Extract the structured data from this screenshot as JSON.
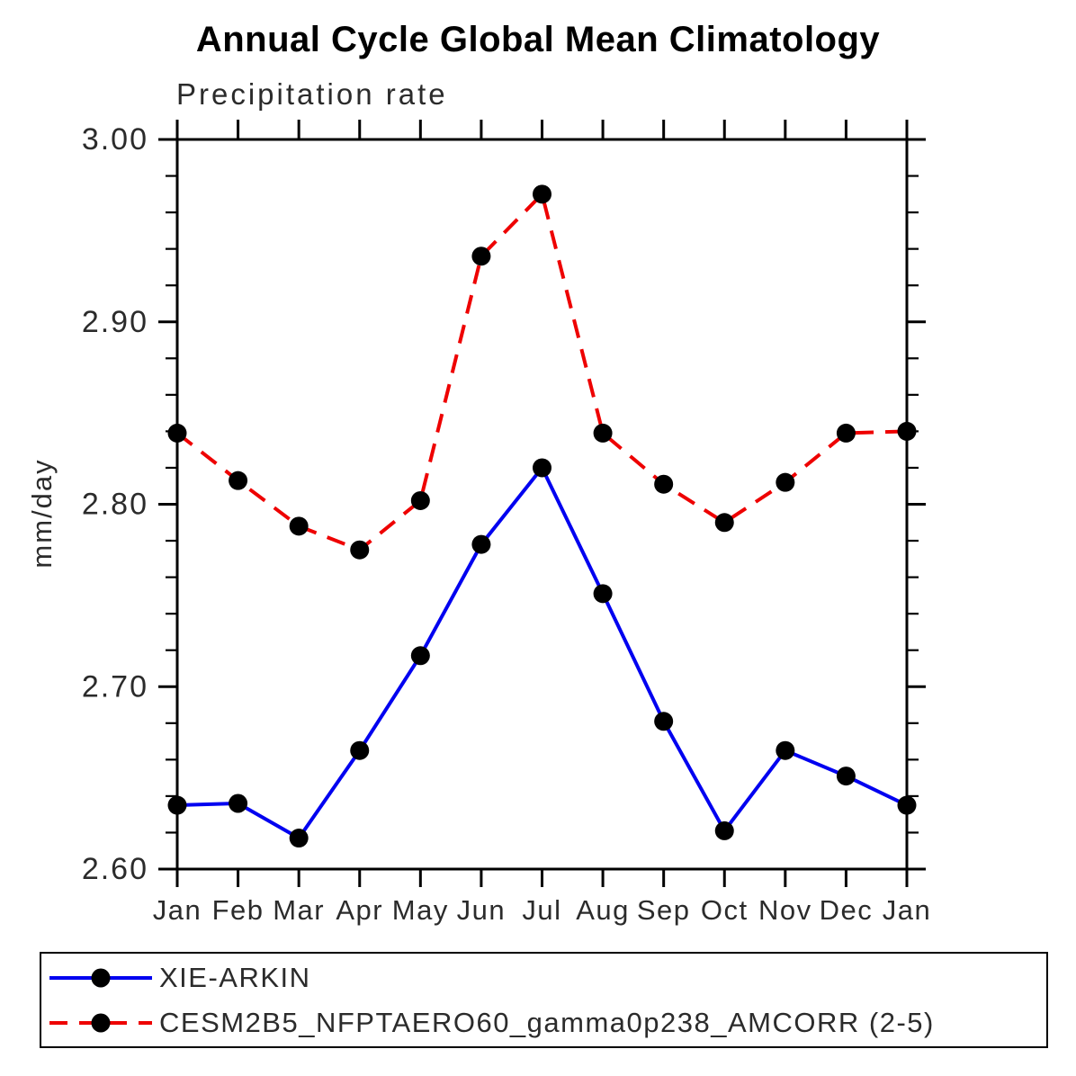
{
  "header": {
    "title": "Annual Cycle Global Mean Climatology",
    "subtitle": "Precipitation rate"
  },
  "chart_data": {
    "type": "line",
    "title": "Annual Cycle Global Mean Climatology",
    "subtitle": "Precipitation rate",
    "xlabel": "",
    "ylabel": "mm/day",
    "x_tick_labels": [
      "Jan",
      "Feb",
      "Mar",
      "Apr",
      "May",
      "Jun",
      "Jul",
      "Aug",
      "Sep",
      "Oct",
      "Nov",
      "Dec",
      "Jan"
    ],
    "y_tick_labels": [
      "2.60",
      "2.70",
      "2.80",
      "2.90",
      "3.00"
    ],
    "ylim": [
      2.6,
      3.0
    ],
    "y_major_step": 0.1,
    "y_minor_step": 0.02,
    "grid": false,
    "legend_position": "bottom",
    "frame_color": "#000000",
    "text_color": "#2b2b2b",
    "series": [
      {
        "name": "XIE-ARKIN",
        "color": "#0000f0",
        "line_style": "solid",
        "marker": "circle",
        "marker_color": "#000000",
        "values": [
          2.635,
          2.636,
          2.617,
          2.665,
          2.717,
          2.778,
          2.82,
          2.751,
          2.681,
          2.621,
          2.665,
          2.651,
          2.635
        ]
      },
      {
        "name": "CESM2B5_NFPTAERO60_gamma0p238_AMCORR (2-5)",
        "color": "#ee0000",
        "line_style": "dashed",
        "marker": "circle",
        "marker_color": "#000000",
        "values": [
          2.839,
          2.813,
          2.788,
          2.775,
          2.802,
          2.936,
          2.97,
          2.839,
          2.811,
          2.79,
          2.812,
          2.839,
          2.84
        ]
      }
    ]
  }
}
